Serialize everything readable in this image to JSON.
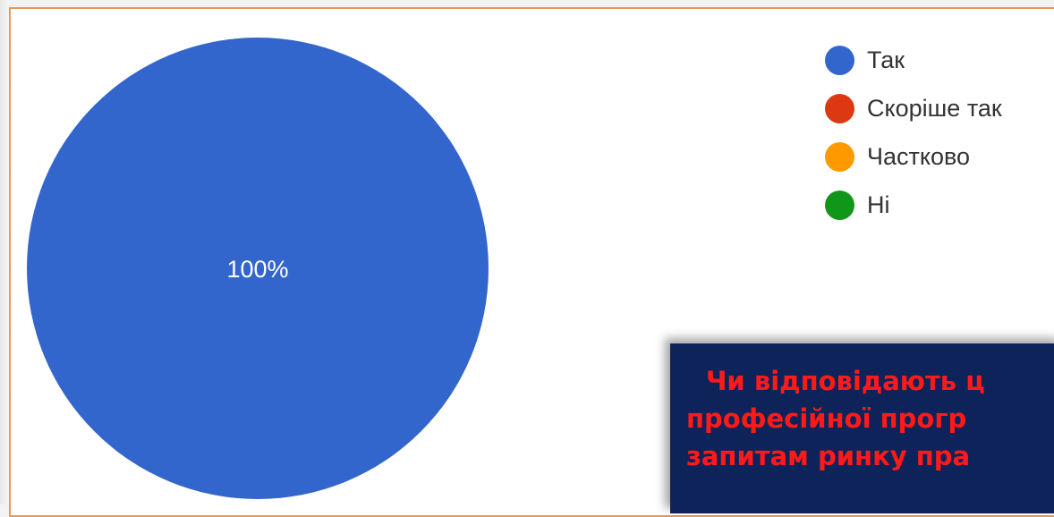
{
  "chart_data": {
    "type": "pie",
    "slices": [
      {
        "label": "Так",
        "value": 100,
        "color": "#3366cc",
        "data_label": "100%"
      },
      {
        "label": "Скоріше так",
        "value": 0,
        "color": "#dc3912"
      },
      {
        "label": "Частково",
        "value": 0,
        "color": "#ff9900"
      },
      {
        "label": "Ні",
        "value": 0,
        "color": "#109618"
      }
    ],
    "legend_position": "top-right"
  },
  "legend": {
    "items": [
      {
        "label": "Так",
        "color": "#3366cc"
      },
      {
        "label": "Скоріше так",
        "color": "#dc3912"
      },
      {
        "label": "Частково",
        "color": "#ff9900"
      },
      {
        "label": "Ні",
        "color": "#109618"
      }
    ]
  },
  "question": {
    "line1": "Чи відповідають ц",
    "line2": "професійної прогр",
    "line3": "запитам ринку пра"
  },
  "colors": {
    "box_background": "#0e2359",
    "question_text": "#ff1a1a",
    "frame_border": "#e39a5c"
  }
}
